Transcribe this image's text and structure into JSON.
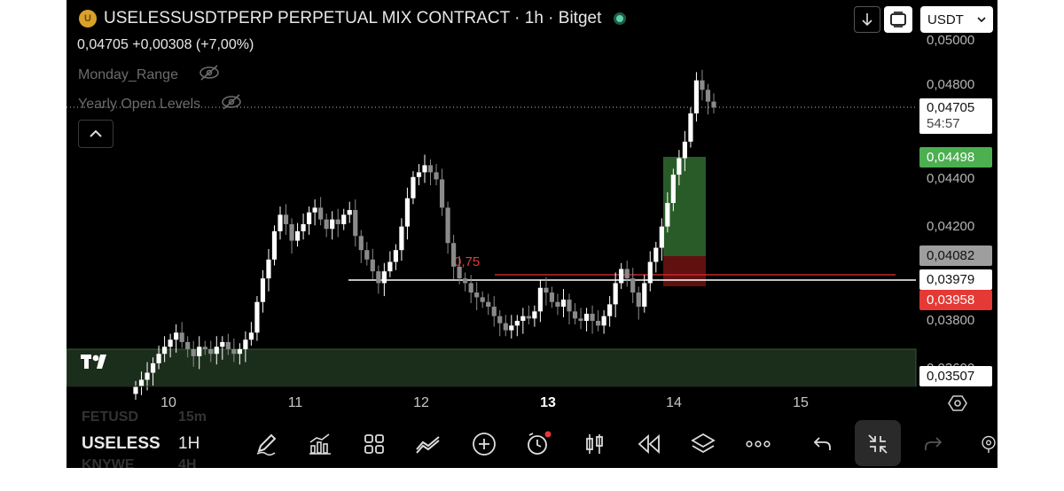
{
  "header": {
    "coin_glyph": "U",
    "title": "USELESSUSDTPERP PERPETUAL MIX CONTRACT · 1h · Bitget",
    "quote_value": "0,04705 +0,00308 (+7,00%)",
    "quote_currency": "USDT",
    "status_color": "#5fd1a9"
  },
  "indicators": [
    {
      "label": "Monday_Range",
      "icon": "eye-off-icon"
    },
    {
      "label": "Yearly Open Levels",
      "icon": "eye-off-icon"
    }
  ],
  "price_axis": {
    "ticks": [
      "0,05000",
      "0,04800",
      "0,04400",
      "0,04200",
      "0,03800",
      "0,03600"
    ],
    "current_price": "0,04705",
    "countdown": "54:57",
    "labels": {
      "take_profit": "0,04498",
      "entry_high": "0,04082",
      "line_level": "0,03979",
      "stop": "0,03958",
      "zone_top": "0,03507"
    }
  },
  "fib_label": "0,75",
  "time_axis": [
    "10",
    "11",
    "12",
    "13",
    "14",
    "15"
  ],
  "toolbar": {
    "symbol": "USELESS",
    "interval": "1H",
    "ghost_above_symbol": "FETUSD",
    "ghost_above_interval": "15m",
    "ghost_below_symbol": "KNYWE",
    "ghost_below_interval": "4H",
    "icons": [
      "pen-icon",
      "indicators-icon",
      "templates-icon",
      "compare-icon",
      "add-icon",
      "alert-icon",
      "candles-icon",
      "replay-icon",
      "layers-icon",
      "more-icon",
      "undo-icon",
      "exit-fullscreen-icon",
      "redo-icon",
      "settings-icon"
    ]
  },
  "colors": {
    "bull": "#ffffff",
    "bear": "#8a8a8a",
    "profit_zone": "#2f6b2f",
    "loss_zone": "#6b1212",
    "demand_zone": "#1b2e1b"
  },
  "chart_data": {
    "type": "candlestick",
    "candles_ohlc_close_path": [
      0.0352,
      0.0355,
      0.0358,
      0.0362,
      0.0366,
      0.0369,
      0.0372,
      0.0375,
      0.0371,
      0.0368,
      0.0365,
      0.0369,
      0.0368,
      0.0366,
      0.0369,
      0.0371,
      0.0368,
      0.0366,
      0.0368,
      0.0372,
      0.0375,
      0.0388,
      0.0398,
      0.0406,
      0.0418,
      0.0425,
      0.0421,
      0.0414,
      0.0418,
      0.0421,
      0.0426,
      0.0428,
      0.0423,
      0.0419,
      0.0423,
      0.0421,
      0.0425,
      0.0427,
      0.0416,
      0.041,
      0.0406,
      0.0401,
      0.0396,
      0.0401,
      0.0405,
      0.041,
      0.042,
      0.0432,
      0.0441,
      0.0443,
      0.0446,
      0.0443,
      0.044,
      0.0428,
      0.0413,
      0.0403,
      0.0398,
      0.0396,
      0.0392,
      0.039,
      0.0388,
      0.0386,
      0.0382,
      0.0379,
      0.0376,
      0.0378,
      0.038,
      0.0382,
      0.0381,
      0.0384,
      0.0394,
      0.0392,
      0.0388,
      0.0386,
      0.0389,
      0.0384,
      0.0381,
      0.038,
      0.0383,
      0.038,
      0.0378,
      0.0382,
      0.0387,
      0.0396,
      0.0402,
      0.0398,
      0.0392,
      0.0386,
      0.0396,
      0.0405,
      0.0411,
      0.042,
      0.043,
      0.0442,
      0.0449,
      0.0456,
      0.0468,
      0.0482,
      0.0478,
      0.0473,
      0.04705
    ],
    "levels": {
      "current": 0.04705,
      "take_profit": 0.04498,
      "entry_high": 0.04082,
      "entry_line": 0.03979,
      "stop": 0.03958,
      "demand_zone_top": 0.03507,
      "fib_075": 0.0397
    }
  }
}
